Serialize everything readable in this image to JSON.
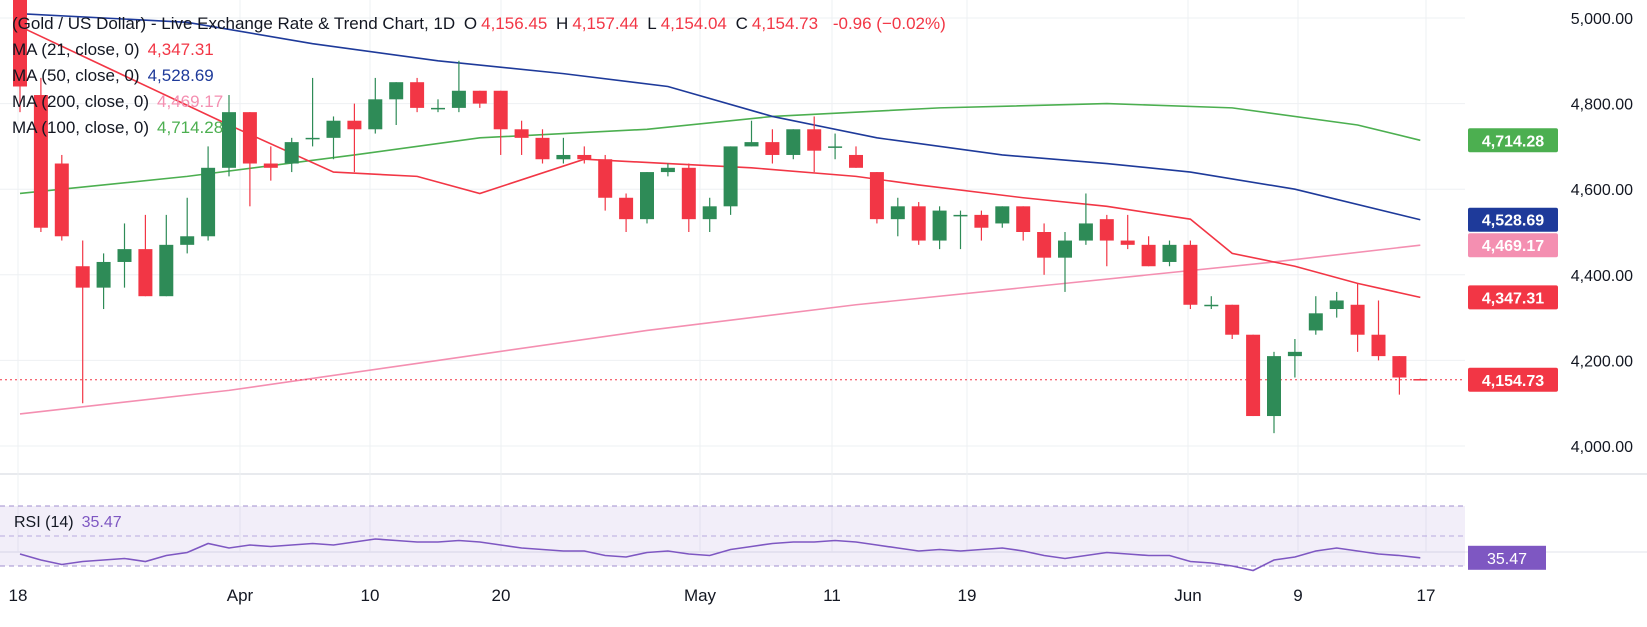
{
  "header": {
    "title": "(Gold / US Dollar) - Live Exchange Rate & Trend Chart, 1D",
    "o_label": "O",
    "o_value": "4,156.45",
    "h_label": "H",
    "h_value": "4,157.44",
    "l_label": "L",
    "l_value": "4,154.04",
    "c_label": "C",
    "c_value": "4,154.73",
    "change": "-0.96 (−0.02%)"
  },
  "indicators": [
    {
      "label": "MA (21, close, 0)",
      "value": "4,347.31",
      "color": "#f23645"
    },
    {
      "label": "MA (50, close, 0)",
      "value": "4,528.69",
      "color": "#1e3a9a"
    },
    {
      "label": "MA (200, close, 0)",
      "value": "4,469.17",
      "color": "#f48fb1"
    },
    {
      "label": "MA (100, close, 0)",
      "value": "4,714.28",
      "color": "#4caf50"
    }
  ],
  "rsi": {
    "label": "RSI (14)",
    "value": "35.47",
    "color": "#7e57c2"
  },
  "colors": {
    "up": "#2e8b57",
    "down": "#f23645",
    "grid": "#eef0f3",
    "text": "#131722"
  },
  "chart_data": {
    "type": "candlestick",
    "y_ticks": [
      "5,000.00",
      "4,800.00",
      "4,600.00",
      "4,400.00",
      "4,200.00",
      "4,000.00"
    ],
    "x_ticks": [
      "18",
      "Apr",
      "10",
      "20",
      "May",
      "11",
      "19",
      "Jun",
      "9",
      "17"
    ],
    "last_price": "4,154.73",
    "price_labels": [
      {
        "text": "4,714.28",
        "value": 4714.28,
        "color": "#4caf50"
      },
      {
        "text": "4,528.69",
        "value": 4528.69,
        "color": "#1e3a9a"
      },
      {
        "text": "4,469.17",
        "value": 4469.17,
        "color": "#f48fb1"
      },
      {
        "text": "4,347.31",
        "value": 4347.31,
        "color": "#f23645"
      },
      {
        "text": "4,154.73",
        "value": 4154.73,
        "color": "#f23645"
      }
    ],
    "candles": [
      [
        5050,
        5060,
        4780,
        4840
      ],
      [
        4820,
        4860,
        4500,
        4510
      ],
      [
        4660,
        4680,
        4480,
        4490
      ],
      [
        4420,
        4480,
        4100,
        4370
      ],
      [
        4370,
        4450,
        4320,
        4430
      ],
      [
        4430,
        4520,
        4370,
        4460
      ],
      [
        4460,
        4540,
        4350,
        4350
      ],
      [
        4350,
        4540,
        4350,
        4470
      ],
      [
        4470,
        4580,
        4450,
        4490
      ],
      [
        4490,
        4700,
        4480,
        4650
      ],
      [
        4650,
        4820,
        4630,
        4780
      ],
      [
        4780,
        4780,
        4560,
        4660
      ],
      [
        4660,
        4700,
        4620,
        4650
      ],
      [
        4660,
        4720,
        4640,
        4710
      ],
      [
        4720,
        4860,
        4700,
        4720
      ],
      [
        4720,
        4770,
        4670,
        4760
      ],
      [
        4760,
        4800,
        4640,
        4740
      ],
      [
        4740,
        4860,
        4730,
        4810
      ],
      [
        4810,
        4850,
        4750,
        4850
      ],
      [
        4850,
        4860,
        4780,
        4790
      ],
      [
        4790,
        4810,
        4780,
        4790
      ],
      [
        4790,
        4900,
        4780,
        4830
      ],
      [
        4830,
        4830,
        4790,
        4800
      ],
      [
        4830,
        4830,
        4680,
        4740
      ],
      [
        4740,
        4760,
        4680,
        4720
      ],
      [
        4720,
        4740,
        4660,
        4670
      ],
      [
        4670,
        4720,
        4660,
        4680
      ],
      [
        4680,
        4700,
        4660,
        4670
      ],
      [
        4670,
        4680,
        4550,
        4580
      ],
      [
        4580,
        4590,
        4500,
        4530
      ],
      [
        4530,
        4640,
        4520,
        4640
      ],
      [
        4640,
        4660,
        4630,
        4650
      ],
      [
        4650,
        4660,
        4500,
        4530
      ],
      [
        4530,
        4580,
        4500,
        4560
      ],
      [
        4560,
        4700,
        4540,
        4700
      ],
      [
        4700,
        4760,
        4700,
        4710
      ],
      [
        4710,
        4740,
        4660,
        4680
      ],
      [
        4680,
        4740,
        4670,
        4740
      ],
      [
        4740,
        4770,
        4640,
        4690
      ],
      [
        4700,
        4730,
        4670,
        4700
      ],
      [
        4680,
        4700,
        4650,
        4650
      ],
      [
        4640,
        4640,
        4520,
        4530
      ],
      [
        4530,
        4580,
        4490,
        4560
      ],
      [
        4560,
        4570,
        4470,
        4480
      ],
      [
        4480,
        4560,
        4460,
        4550
      ],
      [
        4540,
        4550,
        4460,
        4540
      ],
      [
        4540,
        4550,
        4480,
        4510
      ],
      [
        4520,
        4560,
        4510,
        4560
      ],
      [
        4560,
        4560,
        4480,
        4500
      ],
      [
        4500,
        4520,
        4400,
        4440
      ],
      [
        4440,
        4500,
        4360,
        4480
      ],
      [
        4480,
        4590,
        4470,
        4520
      ],
      [
        4530,
        4540,
        4420,
        4480
      ],
      [
        4480,
        4540,
        4460,
        4470
      ],
      [
        4470,
        4490,
        4420,
        4420
      ],
      [
        4430,
        4480,
        4420,
        4470
      ],
      [
        4470,
        4480,
        4320,
        4330
      ],
      [
        4330,
        4350,
        4320,
        4330
      ],
      [
        4330,
        4330,
        4250,
        4260
      ],
      [
        4260,
        4260,
        4070,
        4070
      ],
      [
        4070,
        4220,
        4030,
        4210
      ],
      [
        4210,
        4250,
        4160,
        4220
      ],
      [
        4270,
        4350,
        4260,
        4310
      ],
      [
        4320,
        4360,
        4300,
        4340
      ],
      [
        4330,
        4380,
        4220,
        4260
      ],
      [
        4260,
        4340,
        4200,
        4210
      ],
      [
        4210,
        4210,
        4120,
        4160
      ],
      [
        4156.45,
        4157.44,
        4154.04,
        4154.73
      ]
    ],
    "ma21": [
      [
        0,
        4980
      ],
      [
        10,
        4750
      ],
      [
        15,
        4640
      ],
      [
        19,
        4630
      ],
      [
        22,
        4590
      ],
      [
        27,
        4670
      ],
      [
        31,
        4660
      ],
      [
        35,
        4650
      ],
      [
        40,
        4630
      ],
      [
        43,
        4610
      ],
      [
        48,
        4580
      ],
      [
        52,
        4560
      ],
      [
        56,
        4530
      ],
      [
        58,
        4450
      ],
      [
        61,
        4420
      ],
      [
        64,
        4380
      ],
      [
        67,
        4347.31
      ]
    ],
    "ma50": [
      [
        0,
        5010
      ],
      [
        8,
        4990
      ],
      [
        14,
        4940
      ],
      [
        20,
        4900
      ],
      [
        26,
        4870
      ],
      [
        31,
        4840
      ],
      [
        36,
        4770
      ],
      [
        41,
        4720
      ],
      [
        47,
        4680
      ],
      [
        52,
        4660
      ],
      [
        56,
        4640
      ],
      [
        61,
        4600
      ],
      [
        67,
        4528.69
      ]
    ],
    "ma100": [
      [
        0,
        4590
      ],
      [
        8,
        4630
      ],
      [
        16,
        4680
      ],
      [
        22,
        4720
      ],
      [
        30,
        4740
      ],
      [
        36,
        4770
      ],
      [
        44,
        4790
      ],
      [
        52,
        4800
      ],
      [
        58,
        4790
      ],
      [
        64,
        4750
      ],
      [
        67,
        4714.28
      ]
    ],
    "ma200": [
      [
        0,
        4075
      ],
      [
        10,
        4130
      ],
      [
        20,
        4200
      ],
      [
        30,
        4270
      ],
      [
        40,
        4330
      ],
      [
        50,
        4380
      ],
      [
        60,
        4430
      ],
      [
        67,
        4469.17
      ]
    ],
    "rsi_values": [
      38,
      34,
      31,
      33,
      34,
      35,
      33,
      37,
      39,
      45,
      42,
      44,
      43,
      44,
      45,
      44,
      46,
      48,
      47,
      46,
      46,
      47,
      46,
      44,
      42,
      41,
      40,
      40,
      37,
      36,
      39,
      40,
      38,
      37,
      41,
      43,
      45,
      46,
      46,
      47,
      46,
      44,
      42,
      40,
      41,
      40,
      41,
      42,
      40,
      37,
      35,
      37,
      39,
      38,
      37,
      37,
      33,
      32,
      30,
      27,
      34,
      36,
      40,
      42,
      40,
      38,
      37,
      35.47
    ],
    "rsi_value_label": "35.47",
    "rsi_band": [
      30,
      70
    ]
  }
}
